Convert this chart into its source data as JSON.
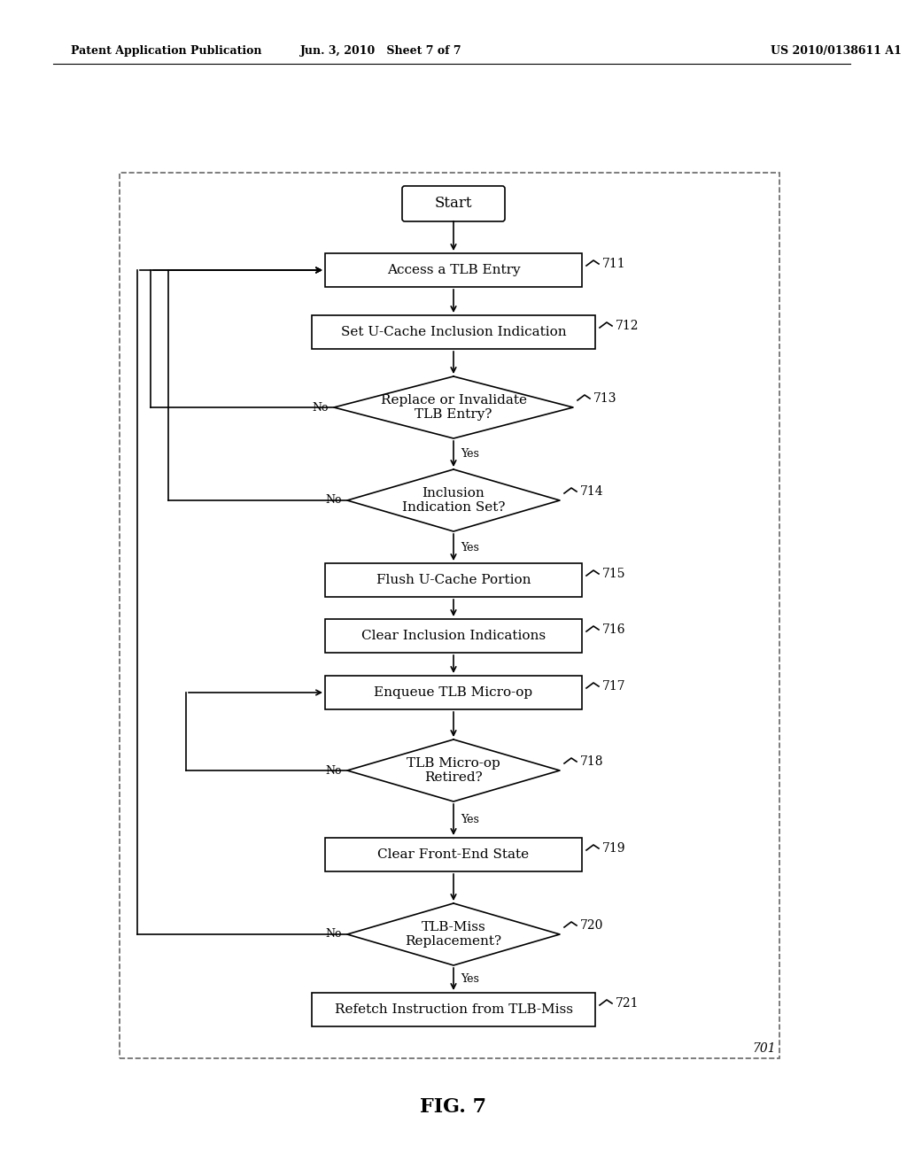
{
  "bg_color": "#ffffff",
  "header_left": "Patent Application Publication",
  "header_center": "Jun. 3, 2010   Sheet 7 of 7",
  "header_right": "US 2010/0138611 A1",
  "fig_label": "FIG. 7",
  "outer_box_label": "701",
  "rect_nodes": [
    {
      "id": "n711",
      "label": "Access a TLB Entry",
      "tag": "711"
    },
    {
      "id": "n712",
      "label": "Set U-Cache Inclusion Indication",
      "tag": "712"
    },
    {
      "id": "n715",
      "label": "Flush U-Cache Portion",
      "tag": "715"
    },
    {
      "id": "n716",
      "label": "Clear Inclusion Indications",
      "tag": "716"
    },
    {
      "id": "n717",
      "label": "Enqueue TLB Micro-op",
      "tag": "717"
    },
    {
      "id": "n719",
      "label": "Clear Front-End State",
      "tag": "719"
    },
    {
      "id": "n721",
      "label": "Refetch Instruction from TLB-Miss",
      "tag": "721"
    }
  ],
  "diamond_nodes": [
    {
      "id": "n713",
      "label": "Replace or Invalidate\nTLB Entry?",
      "tag": "713"
    },
    {
      "id": "n714",
      "label": "Inclusion\nIndication Set?",
      "tag": "714"
    },
    {
      "id": "n718",
      "label": "TLB Micro-op\nRetired?",
      "tag": "718"
    },
    {
      "id": "n720",
      "label": "TLB-Miss\nReplacement?",
      "tag": "720"
    }
  ]
}
